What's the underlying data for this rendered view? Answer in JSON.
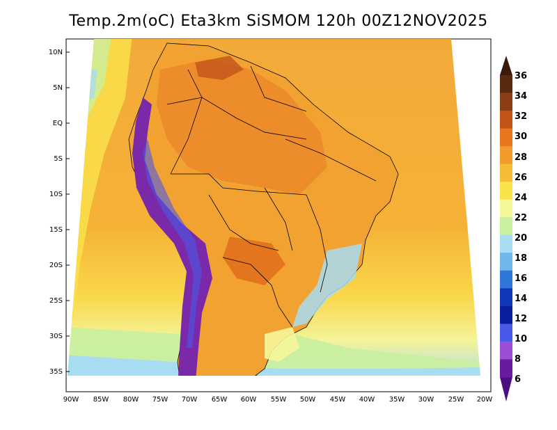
{
  "title": "Temp.2m(oC) Eta3km SiSMOM 120h 00Z12NOV2025",
  "lat_labels": [
    "10N",
    "5N",
    "EQ",
    "5S",
    "10S",
    "15S",
    "20S",
    "25S",
    "30S",
    "35S"
  ],
  "lon_labels": [
    "90W",
    "85W",
    "80W",
    "75W",
    "70W",
    "65W",
    "60W",
    "55W",
    "50W",
    "45W",
    "40W",
    "35W",
    "30W",
    "25W",
    "20W"
  ],
  "colorbar": {
    "labels": [
      "36",
      "34",
      "32",
      "30",
      "28",
      "26",
      "24",
      "22",
      "20",
      "18",
      "16",
      "14",
      "12",
      "10",
      "8",
      "6"
    ],
    "colors_top_to_bottom": [
      "#5a2a10",
      "#8c3f16",
      "#c2541a",
      "#e8761f",
      "#f29a2c",
      "#f6bc35",
      "#f9e34a",
      "#f6f69a",
      "#c9f0a0",
      "#a8dcf2",
      "#70b8ec",
      "#2f78d8",
      "#1238b8",
      "#0a1f9e",
      "#4a5ae8",
      "#9b4fd8",
      "#6a1a9e"
    ],
    "min_arrow_color": "#4a1080",
    "max_arrow_color": "#3a1a0a"
  },
  "palette": {
    "ocean_warm": "#f6b236",
    "ocean_mid": "#f9e04a",
    "ocean_cool": "#f4f49a",
    "ocean_cold": "#a8dcf2",
    "land_hot": "#ec8a2a",
    "land_warm": "#f2a230",
    "andes": "#7a2aa8",
    "outline": "#000000"
  }
}
